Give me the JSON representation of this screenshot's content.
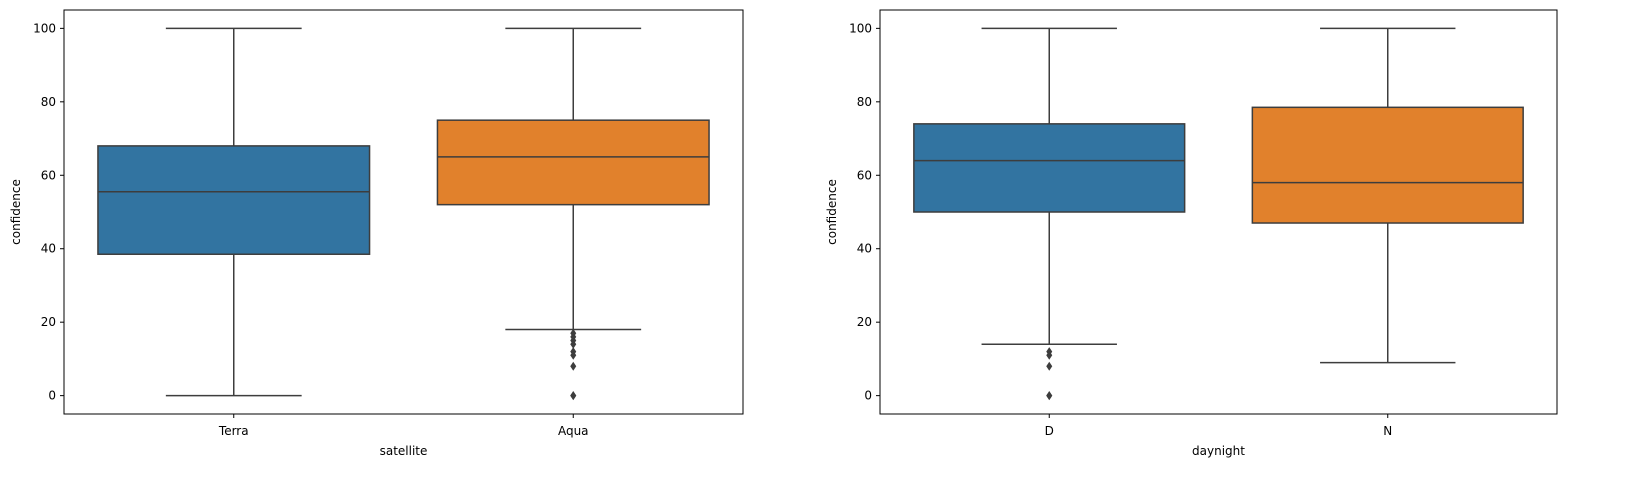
{
  "chart_data": [
    {
      "type": "box",
      "xlabel": "satellite",
      "ylabel": "confidence",
      "ylim": [
        -5,
        105
      ],
      "yticks": [
        0,
        20,
        40,
        60,
        80,
        100
      ],
      "grid": false,
      "boxes": [
        {
          "category": "Terra",
          "color": "#3274a1",
          "whisker_low": 0,
          "q1": 38.5,
          "median": 55.5,
          "q3": 68,
          "whisker_high": 100,
          "outliers": []
        },
        {
          "category": "Aqua",
          "color": "#e1812c",
          "whisker_low": 18,
          "q1": 52,
          "median": 65,
          "q3": 75,
          "whisker_high": 100,
          "outliers": [
            17,
            16,
            15,
            14,
            12,
            11,
            8,
            0,
            0
          ]
        }
      ]
    },
    {
      "type": "box",
      "xlabel": "daynight",
      "ylabel": "confidence",
      "ylim": [
        -5,
        105
      ],
      "yticks": [
        0,
        20,
        40,
        60,
        80,
        100
      ],
      "grid": false,
      "boxes": [
        {
          "category": "D",
          "color": "#3274a1",
          "whisker_low": 14,
          "q1": 50,
          "median": 64,
          "q3": 74,
          "whisker_high": 100,
          "outliers": [
            12,
            11,
            8,
            0,
            0
          ]
        },
        {
          "category": "N",
          "color": "#e1812c",
          "whisker_low": 9,
          "q1": 47,
          "median": 58,
          "q3": 78.5,
          "whisker_high": 100,
          "outliers": []
        }
      ]
    }
  ]
}
